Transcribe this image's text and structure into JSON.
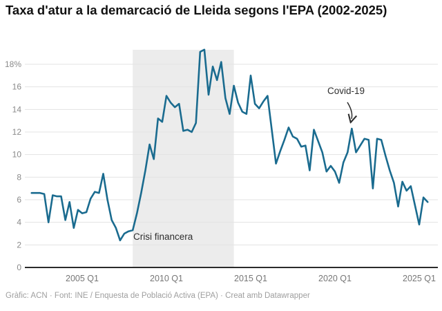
{
  "title": "Taxa d'atur a la demarcació de Lleida segons l'EPA (2002-2025)",
  "footer": "Gràfic: ACN · Font: INE / Enquesta de Població Activa (EPA) · Creat amb Datawrapper",
  "annotations": {
    "crisis_label": "Crisi financera",
    "covid_label": "Covid-19"
  },
  "colors": {
    "line": "#1a6b8f",
    "grid": "#e3e3e3",
    "baseline": "#2b2b2b",
    "shaded_region": "#ececec",
    "tick_text": "#8a8a8a",
    "annotation_text": "#2e2e2e",
    "title_text": "#111111",
    "footer_text": "#9e9e9e"
  },
  "chart_data": {
    "type": "line",
    "title": "Taxa d'atur a la demarcació de Lleida segons l'EPA (2002-2025)",
    "xlabel": "",
    "ylabel": "",
    "unit": "%",
    "frequency": "quarterly",
    "x_start": "2002 Q1",
    "x_end": "2025 Q3",
    "ylim": [
      0,
      19.5
    ],
    "grid": "horizontal",
    "y_ticks": [
      "18%",
      "16",
      "14",
      "12",
      "10",
      "8",
      "6",
      "4",
      "2",
      "0"
    ],
    "x_ticks": [
      "2005 Q1",
      "2010 Q1",
      "2015 Q1",
      "2020 Q1",
      "2025 Q1"
    ],
    "shaded_region": {
      "label": "Crisi financera",
      "from": "2008 Q1",
      "to": "2014 Q1"
    },
    "covid_annotation": {
      "label": "Covid-19",
      "points_to": "2021 Q1",
      "value_at_point": 12.3
    },
    "values": [
      6.6,
      6.6,
      6.6,
      6.5,
      4.0,
      6.4,
      6.3,
      6.3,
      4.2,
      5.8,
      3.5,
      5.1,
      4.8,
      4.9,
      6.1,
      6.7,
      6.6,
      8.3,
      6.0,
      4.2,
      3.5,
      2.4,
      3.0,
      3.2,
      3.3,
      4.8,
      6.6,
      8.6,
      10.9,
      9.6,
      13.2,
      12.9,
      15.2,
      14.6,
      14.2,
      14.5,
      12.1,
      12.2,
      12.0,
      12.8,
      19.1,
      19.3,
      15.3,
      17.8,
      16.6,
      18.2,
      15.0,
      13.6,
      16.1,
      14.6,
      13.8,
      13.6,
      17.0,
      14.5,
      14.1,
      14.7,
      15.2,
      12.2,
      9.2,
      10.3,
      11.3,
      12.4,
      11.6,
      11.4,
      10.7,
      10.8,
      8.6,
      12.2,
      11.2,
      10.2,
      8.5,
      9.0,
      8.5,
      7.5,
      9.3,
      10.2,
      12.3,
      10.2,
      10.8,
      11.4,
      11.3,
      7.0,
      11.4,
      11.3,
      9.9,
      8.6,
      7.5,
      5.4,
      7.6,
      6.8,
      7.2,
      5.5,
      3.8,
      6.2,
      5.8
    ]
  }
}
